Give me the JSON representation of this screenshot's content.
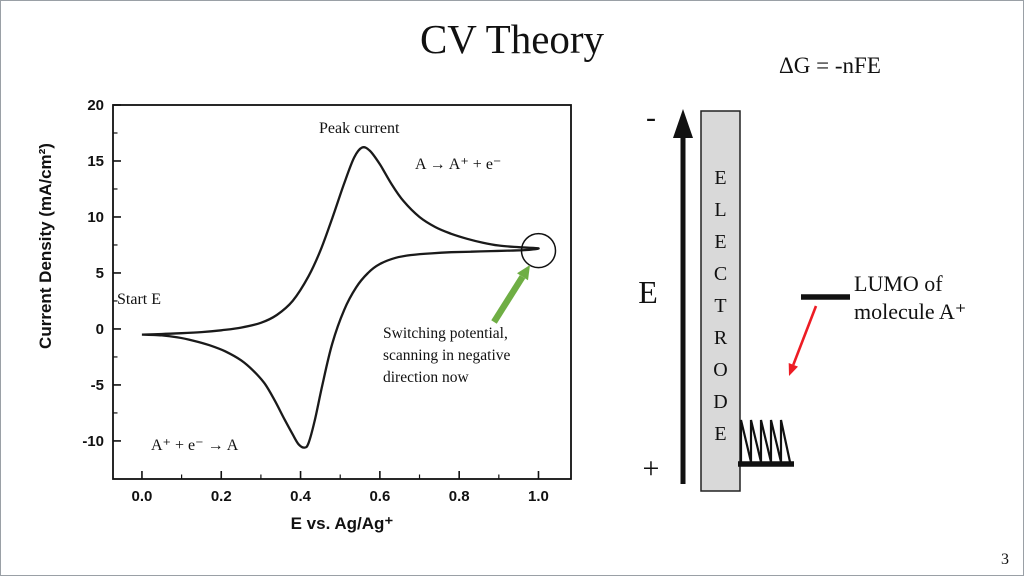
{
  "slide": {
    "title": "CV Theory",
    "equation": "ΔG = -nFE",
    "page_number": "3"
  },
  "chart_data": {
    "type": "line",
    "title": "",
    "xlabel": "E vs. Ag/Ag⁺",
    "ylabel": "Current Density (mA/cm²)",
    "xlim": [
      -0.073,
      1.082
    ],
    "ylim": [
      -13.4,
      20
    ],
    "grid": false,
    "x_ticks": {
      "values": [
        0,
        0.2,
        0.4,
        0.6,
        0.8,
        1.0
      ],
      "labels": [
        "0.0",
        "0.2",
        "0.4",
        "0.6",
        "0.8",
        "1.0"
      ]
    },
    "y_ticks": {
      "values": [
        -10,
        -5,
        0,
        5,
        10,
        15,
        20
      ],
      "labels": [
        "-10",
        "-5",
        "0",
        "5",
        "10",
        "15",
        "20"
      ]
    },
    "series": [
      {
        "name": "cyclic-voltammogram",
        "color": "#1a1a1a",
        "points": [
          [
            0.0,
            -0.5
          ],
          [
            0.05,
            -0.45
          ],
          [
            0.1,
            -0.38
          ],
          [
            0.15,
            -0.28
          ],
          [
            0.2,
            -0.12
          ],
          [
            0.25,
            0.12
          ],
          [
            0.3,
            0.55
          ],
          [
            0.34,
            1.25
          ],
          [
            0.38,
            2.5
          ],
          [
            0.42,
            4.7
          ],
          [
            0.45,
            7.0
          ],
          [
            0.48,
            9.9
          ],
          [
            0.51,
            13.0
          ],
          [
            0.535,
            15.3
          ],
          [
            0.555,
            16.2
          ],
          [
            0.575,
            15.9
          ],
          [
            0.6,
            14.7
          ],
          [
            0.63,
            12.9
          ],
          [
            0.66,
            11.4
          ],
          [
            0.7,
            10.0
          ],
          [
            0.74,
            9.1
          ],
          [
            0.78,
            8.5
          ],
          [
            0.82,
            8.05
          ],
          [
            0.86,
            7.7
          ],
          [
            0.9,
            7.45
          ],
          [
            0.95,
            7.3
          ],
          [
            1.0,
            7.2
          ],
          [
            0.97,
            7.05
          ],
          [
            0.93,
            7.0
          ],
          [
            0.88,
            6.95
          ],
          [
            0.83,
            6.9
          ],
          [
            0.78,
            6.85
          ],
          [
            0.73,
            6.75
          ],
          [
            0.68,
            6.6
          ],
          [
            0.64,
            6.35
          ],
          [
            0.6,
            5.8
          ],
          [
            0.57,
            5.0
          ],
          [
            0.54,
            3.7
          ],
          [
            0.51,
            1.7
          ],
          [
            0.48,
            -1.3
          ],
          [
            0.455,
            -5.0
          ],
          [
            0.435,
            -8.3
          ],
          [
            0.42,
            -10.2
          ],
          [
            0.41,
            -10.6
          ],
          [
            0.395,
            -10.3
          ],
          [
            0.38,
            -9.4
          ],
          [
            0.36,
            -8.1
          ],
          [
            0.335,
            -6.4
          ],
          [
            0.31,
            -4.9
          ],
          [
            0.28,
            -3.7
          ],
          [
            0.25,
            -2.8
          ],
          [
            0.21,
            -2.0
          ],
          [
            0.17,
            -1.45
          ],
          [
            0.13,
            -1.05
          ],
          [
            0.09,
            -0.75
          ],
          [
            0.05,
            -0.58
          ],
          [
            0.0,
            -0.5
          ]
        ]
      }
    ],
    "annotations": {
      "peak_current": "Peak current",
      "oxidation_reaction": "A → A⁺ + e⁻",
      "start_e": "Start E",
      "reduction_reaction": "A⁺ + e⁻ → A",
      "switching_note": "Switching potential,\nscanning in negative\ndirection now",
      "switch_circle": {
        "x": 1.0,
        "y": 7.0,
        "r": 17
      },
      "arrow_color": "#6fae44"
    }
  },
  "diagram": {
    "minus_label": "-",
    "plus_label": "+",
    "axis_label": "E",
    "electrode_label": "ELECTRODE",
    "lumo_label": "LUMO of\nmolecule A⁺",
    "colors": {
      "electrode_fill": "#d9d9d9",
      "red_arrow": "#ed1c24",
      "axis_color": "#111111"
    }
  }
}
